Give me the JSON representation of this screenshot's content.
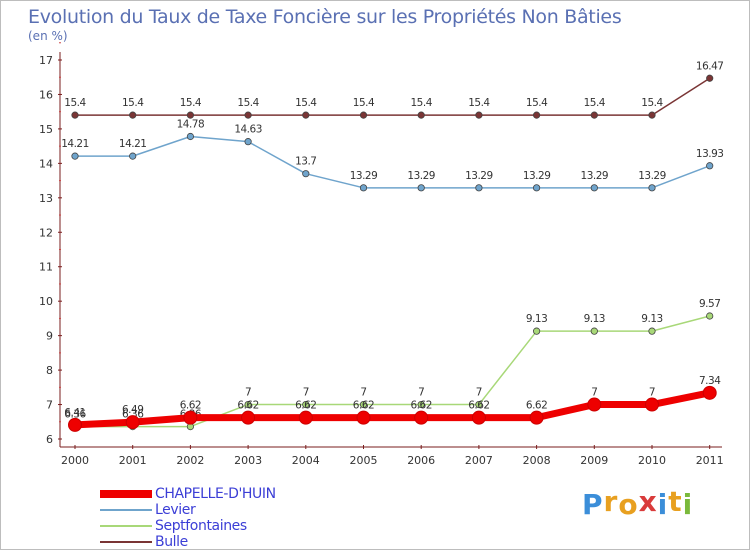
{
  "header": {
    "title": "Evolution du Taux de Taxe Foncière sur les Propriétés Non Bâties",
    "subtitle": "(en %)"
  },
  "logo": {
    "letters": [
      "P",
      "r",
      "o",
      "x",
      "i",
      "t",
      "i"
    ],
    "colors": [
      "#3b8ed9",
      "#e8a020",
      "#e8a020",
      "#d93b3b",
      "#3b8ed9",
      "#e8a020",
      "#7ab93b"
    ]
  },
  "chart_data": {
    "type": "line",
    "title": "Evolution du Taux de Taxe Foncière sur les Propriétés Non Bâties",
    "ylabel": "(en %)",
    "xlabel": "",
    "categories": [
      "2000",
      "2001",
      "2002",
      "2003",
      "2004",
      "2005",
      "2006",
      "2007",
      "2008",
      "2009",
      "2010",
      "2011"
    ],
    "ylim": [
      6,
      17
    ],
    "yticks": [
      "6",
      "7",
      "8",
      "9",
      "10",
      "11",
      "12",
      "13",
      "14",
      "15",
      "16",
      "17"
    ],
    "grid": false,
    "legend_position": "bottom-left",
    "series": [
      {
        "name": "Bulle",
        "color": "#7a3535",
        "width": 1.5,
        "values": [
          15.4,
          15.4,
          15.4,
          15.4,
          15.4,
          15.4,
          15.4,
          15.4,
          15.4,
          15.4,
          15.4,
          16.47
        ],
        "labels": [
          "15.4",
          "15.4",
          "15.4",
          "15.4",
          "15.4",
          "15.4",
          "15.4",
          "15.4",
          "15.4",
          "15.4",
          "15.4",
          "16.47"
        ]
      },
      {
        "name": "Levier",
        "color": "#6fa4cc",
        "width": 1.5,
        "values": [
          14.21,
          14.21,
          14.78,
          14.63,
          13.7,
          13.29,
          13.29,
          13.29,
          13.29,
          13.29,
          13.29,
          13.93
        ],
        "labels": [
          "14.21",
          "14.21",
          "14.78",
          "14.63",
          "13.7",
          "13.29",
          "13.29",
          "13.29",
          "13.29",
          "13.29",
          "13.29",
          "13.93"
        ]
      },
      {
        "name": "Septfontaines",
        "color": "#a8d878",
        "width": 1.5,
        "values": [
          6.36,
          6.36,
          6.36,
          7,
          7,
          7,
          7,
          7,
          9.13,
          9.13,
          9.13,
          9.57
        ],
        "labels": [
          "6.36",
          "6.36",
          "6.36",
          "7",
          "7",
          "7",
          "7",
          "7",
          "9.13",
          "9.13",
          "9.13",
          "9.57"
        ]
      },
      {
        "name": "CHAPELLE-D'HUIN",
        "color": "#ee0000",
        "width": 7,
        "values": [
          6.41,
          6.49,
          6.62,
          6.62,
          6.62,
          6.62,
          6.62,
          6.62,
          6.62,
          7,
          7,
          7.34
        ],
        "labels": [
          "6.41",
          "6.49",
          "6.62",
          "6.62",
          "6.62",
          "6.62",
          "6.62",
          "6.62",
          "6.62",
          "7",
          "7",
          "7.34"
        ]
      }
    ],
    "legend_order": [
      "CHAPELLE-D'HUIN",
      "Levier",
      "Septfontaines",
      "Bulle"
    ]
  }
}
